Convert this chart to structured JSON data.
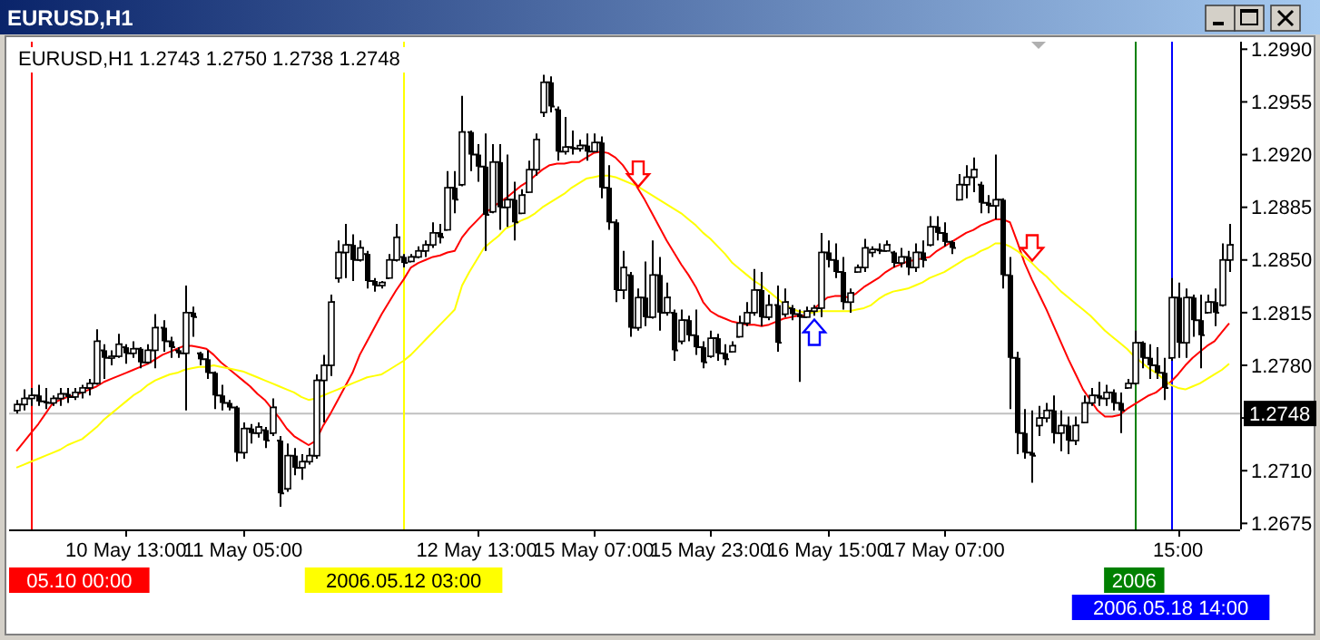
{
  "chart_data": {
    "type": "candlestick",
    "title": "EURUSD,H1",
    "subtitle": "EURUSD,H1  1.2743 1.2750 1.2738 1.2748",
    "color": "#000000",
    "categories": [
      null,
      null,
      null,
      null,
      null,
      null,
      null,
      null,
      null,
      null,
      null,
      null,
      null,
      null,
      null,
      "10 May 13:00",
      null,
      null,
      null,
      null,
      null,
      null,
      null,
      null,
      null,
      null,
      null,
      null,
      null,
      null,
      null,
      "11 May 05:00",
      null,
      null,
      null,
      null,
      null,
      null,
      null,
      null,
      null,
      null,
      null,
      null,
      null,
      null,
      null,
      null,
      null,
      null,
      null,
      null,
      null,
      null,
      null,
      null,
      null,
      null,
      null,
      null,
      null,
      null,
      null,
      "12 May 13:00",
      null,
      null,
      null,
      null,
      null,
      null,
      null,
      null,
      null,
      null,
      null,
      null,
      null,
      null,
      null,
      "15 May 07:00",
      null,
      null,
      null,
      null,
      null,
      null,
      null,
      null,
      null,
      null,
      null,
      null,
      null,
      null,
      null,
      "15 May 23:00",
      null,
      null,
      null,
      null,
      null,
      null,
      null,
      null,
      null,
      null,
      null,
      null,
      null,
      null,
      null,
      "16 May 15:00",
      null,
      null,
      null,
      null,
      null,
      null,
      null,
      null,
      null,
      null,
      null,
      null,
      null,
      null,
      null,
      "17 May 07:00",
      null,
      null,
      null,
      null,
      null,
      null,
      null,
      null,
      null,
      null,
      null,
      null,
      null,
      null,
      null,
      null,
      null,
      null,
      null,
      null,
      null,
      null,
      null,
      null,
      null,
      null,
      null,
      null,
      null,
      null,
      null,
      "15:00",
      null,
      null,
      null,
      null,
      null,
      null,
      null
    ],
    "ohlc": [
      [
        1.275,
        1.2757,
        1.2748,
        1.2754
      ],
      [
        1.2754,
        1.2764,
        1.275,
        1.2758
      ],
      [
        1.2758,
        1.2765,
        1.2753,
        1.276
      ],
      [
        1.276,
        1.2767,
        1.2753,
        1.2756
      ],
      [
        1.2756,
        1.2765,
        1.2751,
        1.2755
      ],
      [
        1.2755,
        1.276,
        1.2753,
        1.2758
      ],
      [
        1.2758,
        1.2765,
        1.2753,
        1.2761
      ],
      [
        1.2761,
        1.2765,
        1.2755,
        1.2759
      ],
      [
        1.2759,
        1.2765,
        1.2757,
        1.2762
      ],
      [
        1.2762,
        1.2767,
        1.2758,
        1.2765
      ],
      [
        1.2765,
        1.2771,
        1.276,
        1.2768
      ],
      [
        1.2768,
        1.2804,
        1.2767,
        1.2796
      ],
      [
        1.279,
        1.2794,
        1.2771,
        1.2785
      ],
      [
        1.2785,
        1.279,
        1.278,
        1.2786
      ],
      [
        1.2786,
        1.2801,
        1.2785,
        1.2794
      ],
      [
        1.2792,
        1.2794,
        1.2781,
        1.2788
      ],
      [
        1.2788,
        1.2796,
        1.2785,
        1.2791
      ],
      [
        1.2791,
        1.2792,
        1.2778,
        1.2782
      ],
      [
        1.2782,
        1.2794,
        1.2781,
        1.279
      ],
      [
        1.279,
        1.2814,
        1.2778,
        1.2805
      ],
      [
        1.2805,
        1.281,
        1.2789,
        1.2796
      ],
      [
        1.2796,
        1.2799,
        1.2785,
        1.2792
      ],
      [
        1.279,
        1.2792,
        1.2785,
        1.2788
      ],
      [
        1.2788,
        1.2833,
        1.275,
        1.2815
      ],
      [
        1.2815,
        1.2819,
        1.2799,
        1.2812
      ],
      [
        1.2788,
        1.2789,
        1.278,
        1.2784
      ],
      [
        1.2784,
        1.279,
        1.2771,
        1.2775
      ],
      [
        1.2775,
        1.2776,
        1.2751,
        1.276
      ],
      [
        1.276,
        1.2767,
        1.275,
        1.2755
      ],
      [
        1.2755,
        1.2757,
        1.275,
        1.2752
      ],
      [
        1.2752,
        1.2753,
        1.2716,
        1.2722
      ],
      [
        1.2722,
        1.2742,
        1.2718,
        1.2738
      ],
      [
        1.2738,
        1.2741,
        1.2728,
        1.2735
      ],
      [
        1.2735,
        1.2742,
        1.2732,
        1.2739
      ],
      [
        1.2737,
        1.2739,
        1.2725,
        1.273
      ],
      [
        1.2735,
        1.2758,
        1.2733,
        1.2752
      ],
      [
        1.273,
        1.2733,
        1.2686,
        1.2695
      ],
      [
        1.2698,
        1.2728,
        1.2696,
        1.272
      ],
      [
        1.272,
        1.2725,
        1.2707,
        1.2712
      ],
      [
        1.2712,
        1.2721,
        1.2704,
        1.2716
      ],
      [
        1.2716,
        1.2725,
        1.2714,
        1.272
      ],
      [
        1.272,
        1.2774,
        1.2718,
        1.277
      ],
      [
        1.277,
        1.2787,
        1.2742,
        1.278
      ],
      [
        1.278,
        1.2827,
        1.2773,
        1.2822
      ],
      [
        1.2838,
        1.2863,
        1.2835,
        1.2855
      ],
      [
        1.2855,
        1.2874,
        1.2838,
        1.286
      ],
      [
        1.286,
        1.2867,
        1.2836,
        1.285
      ],
      [
        1.285,
        1.2863,
        1.2849,
        1.2858
      ],
      [
        1.2854,
        1.2856,
        1.2831,
        1.2836
      ],
      [
        1.2836,
        1.2838,
        1.2829,
        1.2833
      ],
      [
        1.2833,
        1.2836,
        1.2831,
        1.2835
      ],
      [
        1.2838,
        1.2854,
        1.2838,
        1.285
      ],
      [
        1.285,
        1.2874,
        1.2849,
        1.2865
      ],
      [
        1.2852,
        1.2854,
        1.2845,
        1.2848
      ],
      [
        1.2849,
        1.2854,
        1.2849,
        1.2852
      ],
      [
        1.2852,
        1.2859,
        1.2851,
        1.2856
      ],
      [
        1.2856,
        1.2863,
        1.2852,
        1.286
      ],
      [
        1.286,
        1.2875,
        1.2858,
        1.2868
      ],
      [
        1.2868,
        1.2874,
        1.2861,
        1.2865
      ],
      [
        1.287,
        1.2909,
        1.287,
        1.2898
      ],
      [
        1.2898,
        1.2909,
        1.2881,
        1.289
      ],
      [
        1.29,
        1.2959,
        1.2899,
        1.2935
      ],
      [
        1.2935,
        1.2936,
        1.2909,
        1.292
      ],
      [
        1.292,
        1.2927,
        1.2902,
        1.2912
      ],
      [
        1.2912,
        1.2934,
        1.2856,
        1.288
      ],
      [
        1.2882,
        1.2927,
        1.2881,
        1.2915
      ],
      [
        1.2915,
        1.2927,
        1.287,
        1.2885
      ],
      [
        1.2885,
        1.292,
        1.2872,
        1.289
      ],
      [
        1.289,
        1.2902,
        1.2863,
        1.2875
      ],
      [
        1.2881,
        1.2897,
        1.2881,
        1.2893
      ],
      [
        1.2895,
        1.2916,
        1.2895,
        1.291
      ],
      [
        1.291,
        1.2934,
        1.2906,
        1.293
      ],
      [
        1.2948,
        1.2973,
        1.2945,
        1.2968
      ],
      [
        1.2968,
        1.2972,
        1.2948,
        1.2952
      ],
      [
        1.295,
        1.2952,
        1.2916,
        1.2922
      ],
      [
        1.2922,
        1.2945,
        1.292,
        1.2925
      ],
      [
        1.2925,
        1.2936,
        1.292,
        1.2924
      ],
      [
        1.2924,
        1.293,
        1.2922,
        1.2926
      ],
      [
        1.2926,
        1.2934,
        1.2916,
        1.2922
      ],
      [
        1.2922,
        1.2934,
        1.2922,
        1.2928
      ],
      [
        1.2928,
        1.2932,
        1.2891,
        1.2898
      ],
      [
        1.2898,
        1.2913,
        1.287,
        1.2875
      ],
      [
        1.2875,
        1.2877,
        1.2822,
        1.283
      ],
      [
        1.283,
        1.2856,
        1.2824,
        1.2845
      ],
      [
        1.284,
        1.2842,
        1.2799,
        1.2805
      ],
      [
        1.2805,
        1.2831,
        1.2803,
        1.2825
      ],
      [
        1.2825,
        1.2849,
        1.2806,
        1.2812
      ],
      [
        1.2812,
        1.2863,
        1.2811,
        1.284
      ],
      [
        1.284,
        1.2852,
        1.2803,
        1.2815
      ],
      [
        1.2815,
        1.2835,
        1.2813,
        1.2825
      ],
      [
        1.2815,
        1.2817,
        1.2783,
        1.279
      ],
      [
        1.2796,
        1.2817,
        1.2794,
        1.281
      ],
      [
        1.281,
        1.2813,
        1.2796,
        1.28
      ],
      [
        1.28,
        1.2817,
        1.2787,
        1.2792
      ],
      [
        1.2792,
        1.2796,
        1.2778,
        1.2782
      ],
      [
        1.2786,
        1.2803,
        1.2785,
        1.2798
      ],
      [
        1.2798,
        1.2801,
        1.2783,
        1.2788
      ],
      [
        1.2788,
        1.2794,
        1.278,
        1.2784
      ],
      [
        1.2789,
        1.2796,
        1.2789,
        1.2793
      ],
      [
        1.2799,
        1.2813,
        1.2799,
        1.2808
      ],
      [
        1.2808,
        1.2822,
        1.2806,
        1.2815
      ],
      [
        1.2815,
        1.2844,
        1.2813,
        1.283
      ],
      [
        1.283,
        1.2842,
        1.2806,
        1.2812
      ],
      [
        1.2812,
        1.2827,
        1.281,
        1.282
      ],
      [
        1.282,
        1.2833,
        1.2789,
        1.2795
      ],
      [
        1.2814,
        1.2831,
        1.2812,
        1.2822
      ],
      [
        1.2818,
        1.282,
        1.281,
        1.2814
      ],
      [
        1.2814,
        1.2817,
        1.2769,
        1.2812
      ],
      [
        1.2812,
        1.2819,
        1.2812,
        1.2816
      ],
      [
        1.2816,
        1.282,
        1.2813,
        1.2818
      ],
      [
        1.2818,
        1.2868,
        1.2812,
        1.2855
      ],
      [
        1.2855,
        1.2863,
        1.2845,
        1.285
      ],
      [
        1.285,
        1.2861,
        1.2838,
        1.2842
      ],
      [
        1.2842,
        1.2852,
        1.2817,
        1.2822
      ],
      [
        1.2822,
        1.2831,
        1.2815,
        1.2828
      ],
      [
        1.2842,
        1.2847,
        1.2842,
        1.2845
      ],
      [
        1.2845,
        1.2864,
        1.2842,
        1.2858
      ],
      [
        1.2855,
        1.2859,
        1.2852,
        1.2857
      ],
      [
        1.2857,
        1.2861,
        1.2854,
        1.2856
      ],
      [
        1.2856,
        1.2863,
        1.2856,
        1.286
      ],
      [
        1.2855,
        1.2856,
        1.2845,
        1.2848
      ],
      [
        1.2848,
        1.2858,
        1.2845,
        1.2852
      ],
      [
        1.2852,
        1.2856,
        1.284,
        1.2845
      ],
      [
        1.2845,
        1.2861,
        1.2842,
        1.2855
      ],
      [
        1.2855,
        1.2863,
        1.2845,
        1.285
      ],
      [
        1.286,
        1.2879,
        1.2859,
        1.2872
      ],
      [
        1.2872,
        1.2879,
        1.2863,
        1.2868
      ],
      [
        1.2868,
        1.2875,
        1.2859,
        1.2862
      ],
      [
        1.2862,
        1.2863,
        1.2854,
        1.2858
      ],
      [
        1.289,
        1.2907,
        1.289,
        1.29
      ],
      [
        1.29,
        1.2913,
        1.2891,
        1.2905
      ],
      [
        1.2905,
        1.2918,
        1.2895,
        1.291
      ],
      [
        1.29,
        1.2902,
        1.2881,
        1.2888
      ],
      [
        1.2888,
        1.2893,
        1.2881,
        1.2886
      ],
      [
        1.2886,
        1.292,
        1.2877,
        1.289
      ],
      [
        1.289,
        1.2891,
        1.2831,
        1.284
      ],
      [
        1.284,
        1.2852,
        1.2751,
        1.2785
      ],
      [
        1.2785,
        1.2789,
        1.2721,
        1.2735
      ],
      [
        1.2735,
        1.2751,
        1.2718,
        1.2722
      ],
      [
        1.2722,
        1.275,
        1.2702,
        1.272
      ],
      [
        1.274,
        1.2753,
        1.2733,
        1.2745
      ],
      [
        1.2745,
        1.2755,
        1.2742,
        1.275
      ],
      [
        1.275,
        1.276,
        1.2728,
        1.2735
      ],
      [
        1.2735,
        1.275,
        1.2723,
        1.274
      ],
      [
        1.274,
        1.2746,
        1.2721,
        1.273
      ],
      [
        1.273,
        1.2746,
        1.2727,
        1.274
      ],
      [
        1.2742,
        1.276,
        1.2742,
        1.2755
      ],
      [
        1.2755,
        1.2765,
        1.2753,
        1.276
      ],
      [
        1.276,
        1.2769,
        1.2753,
        1.2758
      ],
      [
        1.2758,
        1.2767,
        1.2753,
        1.2762
      ],
      [
        1.2762,
        1.2764,
        1.275,
        1.2755
      ],
      [
        1.2755,
        1.2762,
        1.2735,
        1.275
      ],
      [
        1.2765,
        1.2771,
        1.2765,
        1.2768
      ],
      [
        1.2768,
        1.2803,
        1.2767,
        1.2795
      ],
      [
        1.2795,
        1.2796,
        1.2778,
        1.2785
      ],
      [
        1.2785,
        1.2794,
        1.2771,
        1.278
      ],
      [
        1.278,
        1.2792,
        1.2771,
        1.2775
      ],
      [
        1.2775,
        1.2785,
        1.2757,
        1.2765
      ],
      [
        1.2785,
        1.2838,
        1.2783,
        1.2825
      ],
      [
        1.2825,
        1.2835,
        1.2785,
        1.2795
      ],
      [
        1.2795,
        1.2831,
        1.2785,
        1.2825
      ],
      [
        1.2825,
        1.2827,
        1.2799,
        1.281
      ],
      [
        1.281,
        1.2827,
        1.2778,
        1.28
      ],
      [
        1.2815,
        1.2827,
        1.2815,
        1.2822
      ],
      [
        1.2822,
        1.2831,
        1.2806,
        1.2815
      ],
      [
        1.282,
        1.2861,
        1.2819,
        1.285
      ],
      [
        1.285,
        1.2874,
        1.2842,
        1.286
      ]
    ],
    "series": [
      {
        "type": "line",
        "color": "#ff0000",
        "values": [
          1.2723,
          1.2729,
          1.2735,
          1.2741,
          1.2748,
          1.2755,
          1.2757,
          1.2759,
          1.276,
          1.2762,
          1.2764,
          1.2766,
          1.2769,
          1.2771,
          1.2773,
          1.2775,
          1.2777,
          1.2779,
          1.2781,
          1.2784,
          1.2787,
          1.2789,
          1.2791,
          1.2793,
          1.2793,
          1.2792,
          1.2791,
          1.2787,
          1.2782,
          1.2778,
          1.2774,
          1.277,
          1.2766,
          1.2761,
          1.2757,
          1.2751,
          1.2745,
          1.2738,
          1.2733,
          1.273,
          1.2727,
          1.273,
          1.274,
          1.2748,
          1.2757,
          1.2766,
          1.2775,
          1.2787,
          1.2796,
          1.2805,
          1.2814,
          1.2822,
          1.283,
          1.2837,
          1.2845,
          1.2848,
          1.285,
          1.2852,
          1.2853,
          1.2855,
          1.2856,
          1.2865,
          1.2871,
          1.2876,
          1.2881,
          1.2884,
          1.2888,
          1.2891,
          1.2895,
          1.2899,
          1.2902,
          1.2906,
          1.291,
          1.2913,
          1.2914,
          1.2914,
          1.2915,
          1.2915,
          1.2918,
          1.2921,
          1.2922,
          1.2921,
          1.2918,
          1.2913,
          1.2906,
          1.2898,
          1.289,
          1.2881,
          1.2872,
          1.2863,
          1.2855,
          1.2847,
          1.284,
          1.2832,
          1.2822,
          1.2816,
          1.2813,
          1.2811,
          1.2809,
          1.2808,
          1.2807,
          1.2807,
          1.2806,
          1.2807,
          1.2809,
          1.2811,
          1.2812,
          1.2813,
          1.2813,
          1.2817,
          1.2821,
          1.2825,
          1.2826,
          1.2826,
          1.2825,
          1.2828,
          1.2832,
          1.2835,
          1.2838,
          1.2842,
          1.2845,
          1.2847,
          1.2849,
          1.285,
          1.2851,
          1.2852,
          1.2856,
          1.2859,
          1.2862,
          1.2865,
          1.2868,
          1.287,
          1.2873,
          1.2875,
          1.2877,
          1.2877,
          1.2875,
          1.2862,
          1.2848,
          1.2837,
          1.2827,
          1.2817,
          1.2806,
          1.2795,
          1.2784,
          1.2774,
          1.2764,
          1.2757,
          1.275,
          1.2746,
          1.2746,
          1.2747,
          1.2751,
          1.2754,
          1.2757,
          1.276,
          1.2762,
          1.2766,
          1.2769,
          1.2774,
          1.278,
          1.2785,
          1.2789,
          1.2793,
          1.2796,
          1.2802,
          1.2808
        ]
      },
      {
        "type": "line",
        "color": "#ffff00",
        "values": [
          1.2712,
          1.2714,
          1.2716,
          1.2718,
          1.272,
          1.2722,
          1.2724,
          1.2727,
          1.2729,
          1.2731,
          1.2735,
          1.2739,
          1.2744,
          1.2748,
          1.2752,
          1.2756,
          1.276,
          1.2763,
          1.2767,
          1.277,
          1.2772,
          1.2774,
          1.2775,
          1.2777,
          1.2778,
          1.2779,
          1.2779,
          1.278,
          1.2779,
          1.2778,
          1.2777,
          1.2776,
          1.2774,
          1.2772,
          1.277,
          1.2768,
          1.2766,
          1.2764,
          1.2762,
          1.2759,
          1.2757,
          1.2758,
          1.276,
          1.2762,
          1.2764,
          1.2766,
          1.2768,
          1.277,
          1.2772,
          1.2773,
          1.2774,
          1.2777,
          1.278,
          1.2783,
          1.2787,
          1.2792,
          1.2797,
          1.2802,
          1.2807,
          1.2812,
          1.2817,
          1.2833,
          1.2842,
          1.285,
          1.2858,
          1.2862,
          1.2866,
          1.2871,
          1.2873,
          1.2876,
          1.2878,
          1.2881,
          1.2885,
          1.2888,
          1.2891,
          1.2894,
          1.2898,
          1.2901,
          1.2904,
          1.2905,
          1.2906,
          1.2906,
          1.2905,
          1.2903,
          1.2901,
          1.2899,
          1.2896,
          1.2893,
          1.289,
          1.2887,
          1.2884,
          1.2881,
          1.2877,
          1.2873,
          1.2868,
          1.2864,
          1.2859,
          1.2854,
          1.2848,
          1.2844,
          1.284,
          1.2836,
          1.2833,
          1.2829,
          1.2825,
          1.2821,
          1.2818,
          1.2816,
          1.2815,
          1.2815,
          1.2816,
          1.2816,
          1.2816,
          1.2816,
          1.2816,
          1.2817,
          1.2818,
          1.282,
          1.2824,
          1.2827,
          1.2829,
          1.283,
          1.2831,
          1.2833,
          1.2835,
          1.2838,
          1.284,
          1.2842,
          1.2845,
          1.2848,
          1.2851,
          1.2853,
          1.2856,
          1.2858,
          1.2861,
          1.2861,
          1.2859,
          1.2856,
          1.2852,
          1.2848,
          1.2843,
          1.2839,
          1.2834,
          1.2829,
          1.2825,
          1.2821,
          1.2817,
          1.2813,
          1.2808,
          1.2803,
          1.2799,
          1.2795,
          1.2791,
          1.2786,
          1.2782,
          1.2778,
          1.2775,
          1.2771,
          1.2767,
          1.2765,
          1.2764,
          1.2766,
          1.2768,
          1.2771,
          1.2774,
          1.2777,
          1.2781
        ]
      },
      {
        "type": "scatter",
        "color": "#ff0000",
        "values": [
          null,
          null,
          null,
          null,
          null,
          null,
          null,
          null,
          null,
          null,
          null,
          null,
          null,
          null,
          null,
          null,
          null,
          null,
          null,
          null,
          null,
          null,
          null,
          null,
          null,
          null,
          null,
          null,
          null,
          null,
          null,
          null,
          null,
          null,
          null,
          null,
          null,
          null,
          null,
          null,
          null,
          null,
          null,
          null,
          null,
          null,
          null,
          null,
          null,
          null,
          null,
          null,
          null,
          null,
          null,
          null,
          null,
          null,
          null,
          null,
          null,
          null,
          null,
          null,
          null,
          null,
          null,
          null,
          null,
          null,
          null,
          null,
          null,
          null,
          null,
          null,
          null,
          null,
          null,
          null,
          null,
          null,
          null,
          null,
          null,
          1.2907,
          null,
          null,
          null,
          null,
          null,
          null,
          null,
          null,
          null,
          null,
          null,
          null,
          null,
          null,
          null,
          null,
          null,
          null,
          null,
          null,
          null,
          null,
          null,
          null,
          null,
          null,
          null,
          null,
          null,
          null,
          null,
          null,
          null,
          null,
          null,
          null,
          null,
          null,
          null,
          null,
          null,
          null,
          null,
          null,
          null,
          null,
          null,
          null,
          null,
          null,
          null,
          null,
          null,
          1.2858,
          null,
          null,
          null,
          null,
          null,
          null,
          null,
          null,
          null,
          null,
          null,
          null,
          null,
          null,
          null,
          null,
          null,
          null,
          null,
          null,
          null,
          null,
          null,
          null,
          null,
          null,
          null
        ]
      },
      {
        "type": "scatter",
        "color": "#0000ff",
        "values": [
          null,
          null,
          null,
          null,
          null,
          null,
          null,
          null,
          null,
          null,
          null,
          null,
          null,
          null,
          null,
          null,
          null,
          null,
          null,
          null,
          null,
          null,
          null,
          null,
          null,
          null,
          null,
          null,
          null,
          null,
          null,
          null,
          null,
          null,
          null,
          null,
          null,
          null,
          null,
          null,
          null,
          null,
          null,
          null,
          null,
          null,
          null,
          null,
          null,
          null,
          null,
          null,
          null,
          null,
          null,
          null,
          null,
          null,
          null,
          null,
          null,
          null,
          null,
          null,
          null,
          null,
          null,
          null,
          null,
          null,
          null,
          null,
          null,
          null,
          null,
          null,
          null,
          null,
          null,
          null,
          null,
          null,
          null,
          null,
          null,
          null,
          null,
          null,
          null,
          null,
          null,
          null,
          null,
          null,
          null,
          null,
          null,
          null,
          null,
          null,
          null,
          null,
          null,
          null,
          null,
          null,
          null,
          null,
          null,
          1.2802,
          null,
          null,
          null,
          null,
          null,
          null,
          null,
          null,
          null,
          null,
          null,
          null,
          null,
          null,
          null,
          null,
          null,
          null,
          null,
          null,
          null,
          null,
          null,
          null,
          null,
          null,
          null,
          null,
          null,
          null,
          null,
          null,
          null,
          null,
          null,
          null,
          null,
          null,
          null,
          null,
          null,
          null,
          null,
          null,
          null,
          null,
          null,
          null,
          null,
          null,
          null,
          null,
          null,
          null,
          null,
          null,
          null
        ]
      }
    ],
    "ylim": [
      1.2671,
      1.2995
    ],
    "yticks": [
      {
        "value": 1.299,
        "label": "1.2990"
      },
      1.2955,
      {
        "value": 1.292,
        "label": "1.2920"
      },
      1.2885,
      {
        "value": 1.285,
        "label": "1.2850"
      },
      1.2815,
      {
        "value": 1.278,
        "label": "1.2780"
      },
      {
        "value": 1.2745,
        "label": null
      },
      {
        "value": 1.271,
        "label": "1.2710"
      },
      1.2675
    ],
    "ref_lines": [
      {
        "axis": "y",
        "value": 1.2748,
        "label": "1.2748",
        "color": "#c0c0c0"
      }
    ],
    "annotations": [
      "05.10 00:00",
      "2006.05.12 03:00",
      "2006",
      "2006.05.18 14:00"
    ]
  }
}
